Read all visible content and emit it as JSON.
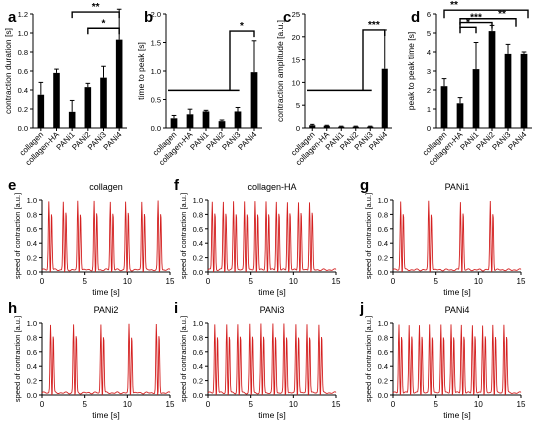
{
  "bar_panels": [
    {
      "letter": "a",
      "ylabel": "contraction duration [s]",
      "yticks": [
        "0.0",
        "0.2",
        "0.4",
        "0.6",
        "0.8",
        "1.0",
        "1.2"
      ],
      "ymax": 1.2,
      "categories": [
        "collagen",
        "collagen-HA",
        "PANi1",
        "PANi2",
        "PANi3",
        "PANi4"
      ],
      "values": [
        0.35,
        0.58,
        0.17,
        0.43,
        0.53,
        0.93
      ],
      "errors": [
        0.13,
        0.04,
        0.12,
        0.04,
        0.12,
        0.32
      ],
      "stars": [
        "**",
        "*"
      ]
    },
    {
      "letter": "b",
      "ylabel": "time to peak [s]",
      "yticks": [
        "0.0",
        "0.5",
        "1.0",
        "1.5",
        "2.0"
      ],
      "ymax": 2.0,
      "categories": [
        "collagen",
        "collagen-HA",
        "PANi1",
        "PANi2",
        "PANi3",
        "PANi4"
      ],
      "values": [
        0.17,
        0.24,
        0.29,
        0.12,
        0.29,
        0.98
      ],
      "errors": [
        0.05,
        0.09,
        0.02,
        0.02,
        0.07,
        0.55
      ],
      "stars": [
        "*"
      ]
    },
    {
      "letter": "c",
      "ylabel": "contraction amplitude [a.u.]",
      "yticks": [
        "0",
        "5",
        "10",
        "15",
        "20",
        "25"
      ],
      "ymax": 25,
      "categories": [
        "collagen",
        "collagen-HA",
        "PANi1",
        "PANi2",
        "PANi3",
        "PANi4"
      ],
      "values": [
        0.6,
        0.5,
        0.3,
        0.3,
        0.3,
        13.0
      ],
      "errors": [
        0.2,
        0.1,
        0.1,
        0.1,
        0.1,
        8.5
      ],
      "stars": [
        "***"
      ]
    },
    {
      "letter": "d",
      "ylabel": "peak to peak time [s]",
      "yticks": [
        "0",
        "1",
        "2",
        "3",
        "4",
        "5",
        "6"
      ],
      "ymax": 6,
      "categories": [
        "collagen",
        "collagen-HA",
        "PANi1",
        "PANi2",
        "PANi3",
        "PANi4"
      ],
      "values": [
        2.2,
        1.3,
        3.1,
        5.1,
        3.9,
        3.9
      ],
      "errors": [
        0.4,
        0.3,
        1.4,
        0.3,
        0.5,
        0.1
      ],
      "stars": [
        "**",
        "**",
        "***",
        "*"
      ]
    }
  ],
  "trace_panels": [
    {
      "letter": "e",
      "title": "collagen",
      "ylabel": "speed of contraction [a.u.]",
      "xlabel": "time [s]",
      "peaks": [
        0.8,
        2.5,
        4.2,
        6.1,
        8.0,
        9.8,
        11.7,
        13.6
      ]
    },
    {
      "letter": "f",
      "title": "collagen-HA",
      "ylabel": "speed of contraction [a.u.]",
      "xlabel": "time [s]",
      "peaks": [
        0.5,
        1.8,
        3.0,
        4.3,
        5.5,
        6.8,
        8.0,
        9.3,
        10.6,
        11.9
      ]
    },
    {
      "letter": "g",
      "title": "PANi1",
      "ylabel": "speed of contraction [a.u.]",
      "xlabel": "time [s]",
      "peaks": [
        0.9,
        4.2,
        7.9,
        11.4
      ]
    },
    {
      "letter": "h",
      "title": "PANi2",
      "ylabel": "speed of contraction [a.u.]",
      "xlabel": "time [s]",
      "peaks": [
        1.0,
        3.7,
        6.9,
        10.2,
        13.4
      ]
    },
    {
      "letter": "i",
      "title": "PANi3",
      "ylabel": "speed of contraction [a.u.]",
      "xlabel": "time [s]",
      "peaks": [
        0.8,
        2.2,
        3.5,
        4.9,
        6.2,
        7.6,
        8.9,
        10.3,
        11.6,
        13.0
      ]
    },
    {
      "letter": "j",
      "title": "PANi4",
      "ylabel": "speed of contraction [a.u.]",
      "xlabel": "time [s]",
      "peaks": [
        0.7,
        1.9,
        3.1,
        4.3,
        5.6,
        6.8,
        8.0,
        9.3,
        10.5,
        11.7,
        13.0
      ]
    }
  ],
  "trace_axes": {
    "xticks": [
      "0",
      "5",
      "10",
      "15"
    ],
    "yticks": [
      "0.0",
      "0.2",
      "0.4",
      "0.6",
      "0.8",
      "1.0"
    ],
    "xmax": 15,
    "ymax": 1.0
  },
  "chart_data": [
    {
      "type": "bar",
      "ylabel": "contraction duration [s]",
      "categories": [
        "collagen",
        "collagen-HA",
        "PANi1",
        "PANi2",
        "PANi3",
        "PANi4"
      ],
      "values": [
        0.35,
        0.58,
        0.17,
        0.43,
        0.53,
        0.93
      ],
      "ylim": [
        0,
        1.2
      ]
    },
    {
      "type": "bar",
      "ylabel": "time to peak [s]",
      "categories": [
        "collagen",
        "collagen-HA",
        "PANi1",
        "PANi2",
        "PANi3",
        "PANi4"
      ],
      "values": [
        0.17,
        0.24,
        0.29,
        0.12,
        0.29,
        0.98
      ],
      "ylim": [
        0,
        2.0
      ]
    },
    {
      "type": "bar",
      "ylabel": "contraction amplitude [a.u.]",
      "categories": [
        "collagen",
        "collagen-HA",
        "PANi1",
        "PANi2",
        "PANi3",
        "PANi4"
      ],
      "values": [
        0.6,
        0.5,
        0.3,
        0.3,
        0.3,
        13.0
      ],
      "ylim": [
        0,
        25
      ]
    },
    {
      "type": "bar",
      "ylabel": "peak to peak time [s]",
      "categories": [
        "collagen",
        "collagen-HA",
        "PANi1",
        "PANi2",
        "PANi3",
        "PANi4"
      ],
      "values": [
        2.2,
        1.3,
        3.1,
        5.1,
        3.9,
        3.9
      ],
      "ylim": [
        0,
        6
      ]
    },
    {
      "type": "line",
      "title": "collagen",
      "xlabel": "time [s]",
      "ylabel": "speed of contraction [a.u.]",
      "xlim": [
        0,
        15
      ],
      "ylim": [
        0,
        1.0
      ]
    },
    {
      "type": "line",
      "title": "collagen-HA",
      "xlabel": "time [s]",
      "ylabel": "speed of contraction [a.u.]",
      "xlim": [
        0,
        15
      ],
      "ylim": [
        0,
        1.0
      ]
    },
    {
      "type": "line",
      "title": "PANi1",
      "xlabel": "time [s]",
      "ylabel": "speed of contraction [a.u.]",
      "xlim": [
        0,
        15
      ],
      "ylim": [
        0,
        1.0
      ]
    },
    {
      "type": "line",
      "title": "PANi2",
      "xlabel": "time [s]",
      "ylabel": "speed of contraction [a.u.]",
      "xlim": [
        0,
        15
      ],
      "ylim": [
        0,
        1.0
      ]
    },
    {
      "type": "line",
      "title": "PANi3",
      "xlabel": "time [s]",
      "ylabel": "speed of contraction [a.u.]",
      "xlim": [
        0,
        15
      ],
      "ylim": [
        0,
        1.0
      ]
    },
    {
      "type": "line",
      "title": "PANi4",
      "xlabel": "time [s]",
      "ylabel": "speed of contraction [a.u.]",
      "xlim": [
        0,
        15
      ],
      "ylim": [
        0,
        1.0
      ]
    }
  ],
  "colors": {
    "bar": "#000000",
    "trace": "#d42020"
  }
}
